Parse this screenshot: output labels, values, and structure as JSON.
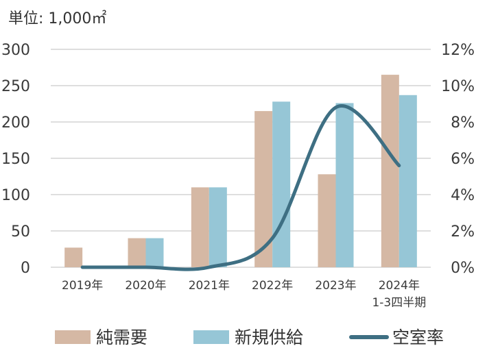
{
  "chart_data": {
    "type": "bar",
    "unit_label": "単位: 1,000㎡",
    "categories": [
      "2019年",
      "2020年",
      "2021年",
      "2022年",
      "2023年",
      "2024年"
    ],
    "category_sublabels": [
      "",
      "",
      "",
      "",
      "",
      "1-3四半期"
    ],
    "series": [
      {
        "name": "純需要",
        "type": "bar",
        "axis": "left",
        "color": "#d5b8a4",
        "values": [
          27,
          40,
          110,
          215,
          128,
          265
        ]
      },
      {
        "name": "新規供給",
        "type": "bar",
        "axis": "left",
        "color": "#96c6d6",
        "values": [
          0,
          40,
          110,
          228,
          226,
          237
        ]
      },
      {
        "name": "空室率",
        "type": "line",
        "axis": "right",
        "color": "#3e6f83",
        "values": [
          0.0,
          0.0,
          0.0,
          1.6,
          8.8,
          5.6
        ]
      }
    ],
    "left_axis": {
      "ylim": [
        0,
        300
      ],
      "ticks": [
        "0",
        "50",
        "100",
        "150",
        "200",
        "250",
        "300"
      ]
    },
    "right_axis": {
      "ylim": [
        0,
        12
      ],
      "ticks": [
        "0%",
        "2%",
        "4%",
        "6%",
        "8%",
        "10%",
        "12%"
      ]
    },
    "grid": true,
    "legend_position": "bottom"
  }
}
